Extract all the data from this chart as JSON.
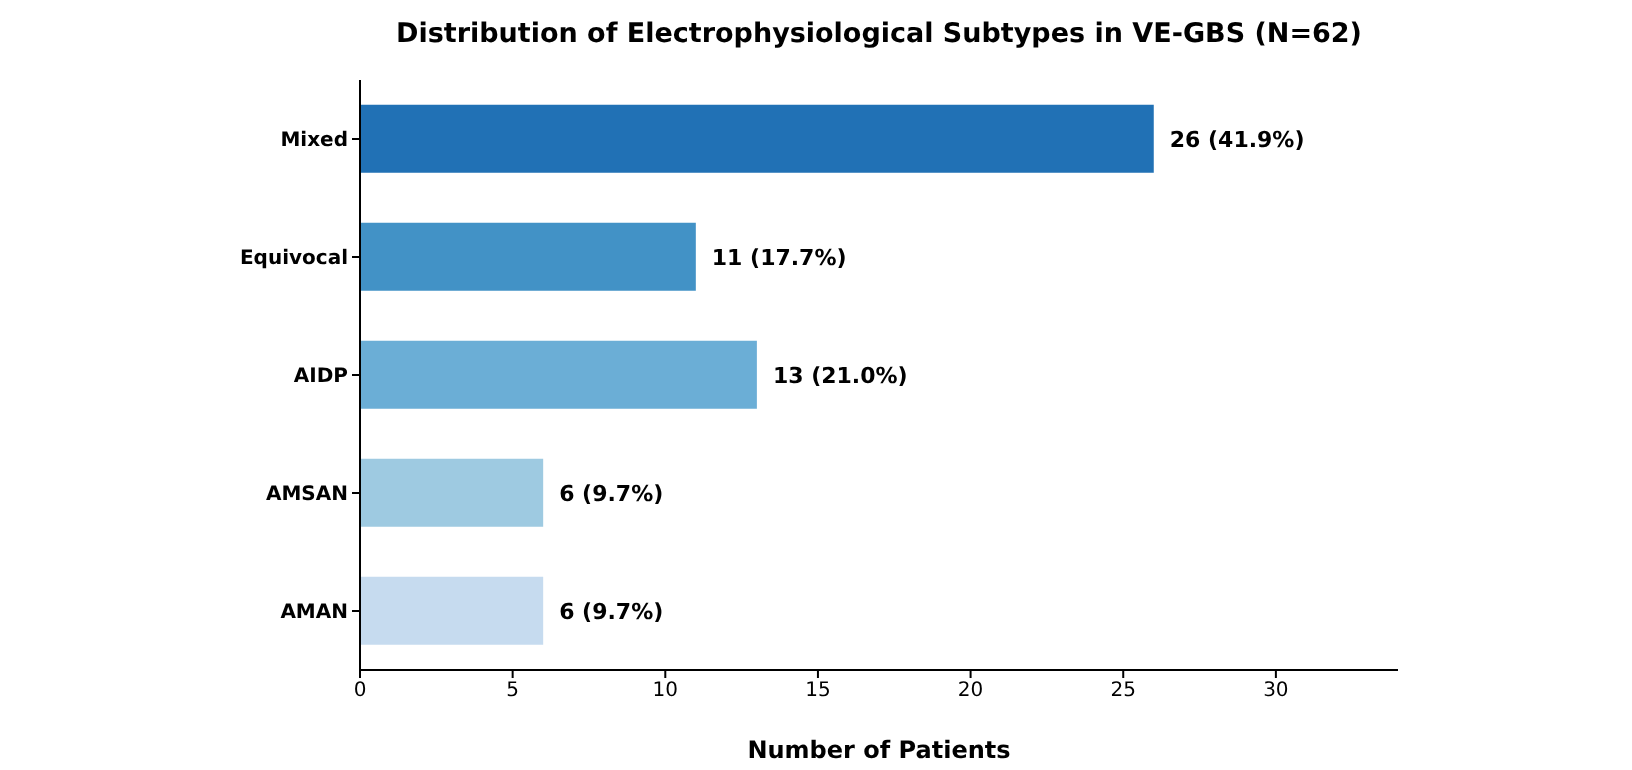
{
  "chart_data": {
    "type": "bar",
    "orientation": "horizontal",
    "title": "Distribution of Electrophysiological Subtypes in VE-GBS (N=62)",
    "xlabel": "Number of Patients",
    "categories": [
      "Mixed",
      "Equivocal",
      "AIDP",
      "AMSAN",
      "AMAN"
    ],
    "values": [
      26,
      11,
      13,
      6,
      6
    ],
    "colors": [
      "#2171b5",
      "#4292c6",
      "#6baed6",
      "#9ecae1",
      "#c6dbef"
    ],
    "value_labels": [
      "26 (41.9%)",
      "11 (17.7%)",
      "13 (21.0%)",
      "6 (9.7%)",
      "6 (9.7%)"
    ],
    "xlim": [
      0,
      34
    ],
    "xticks": [
      0,
      5,
      10,
      15,
      20,
      25,
      30
    ],
    "grid": false,
    "legend": false
  }
}
